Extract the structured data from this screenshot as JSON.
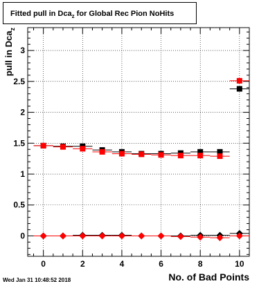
{
  "chart_data": {
    "type": "scatter",
    "title": "Fitted pull in Dca",
    "title_sub": "z",
    "title_suffix": " for Global Rec Pion NoHits",
    "xlabel": "No. of Bad Points",
    "ylabel": "pull in Dca",
    "ylabel_sub": "z",
    "xlim": [
      -0.8,
      10.5
    ],
    "ylim": [
      -0.33,
      3.37
    ],
    "x_ticks": [
      0,
      2,
      4,
      6,
      8,
      10
    ],
    "y_ticks": [
      0,
      0.5,
      1,
      1.5,
      2,
      2.5,
      3
    ],
    "y_tick_labels": [
      "0",
      "0.5",
      "1",
      "1.5",
      "2",
      "2.5",
      "3"
    ],
    "grid": true,
    "series": [
      {
        "marker": "square",
        "color": "#000000",
        "x": [
          0,
          1,
          2,
          3,
          4,
          5,
          6,
          7,
          8,
          9,
          10
        ],
        "y": [
          1.46,
          1.45,
          1.45,
          1.39,
          1.36,
          1.33,
          1.33,
          1.34,
          1.36,
          1.36,
          2.38
        ]
      },
      {
        "marker": "square",
        "color": "#ff0000",
        "x": [
          0,
          1,
          2,
          3,
          4,
          5,
          6,
          7,
          8,
          9,
          10
        ],
        "y": [
          1.46,
          1.44,
          1.41,
          1.36,
          1.33,
          1.32,
          1.31,
          1.3,
          1.3,
          1.29,
          2.51
        ]
      },
      {
        "marker": "diamond",
        "color": "#000000",
        "x": [
          0,
          1,
          2,
          3,
          4,
          5,
          6,
          7,
          8,
          9,
          10
        ],
        "y": [
          0.0,
          0.0,
          0.01,
          0.01,
          0.01,
          0.0,
          0.0,
          0.0,
          0.01,
          0.01,
          0.04
        ]
      },
      {
        "marker": "diamond",
        "color": "#ff0000",
        "x": [
          0,
          1,
          2,
          3,
          4,
          5,
          6,
          7,
          8,
          9,
          10
        ],
        "y": [
          0.0,
          0.0,
          0.0,
          0.0,
          0.0,
          0.0,
          0.0,
          -0.01,
          -0.02,
          -0.03,
          0.0
        ]
      }
    ]
  },
  "timestamp": "Wed Jan 31 10:48:52 2018"
}
